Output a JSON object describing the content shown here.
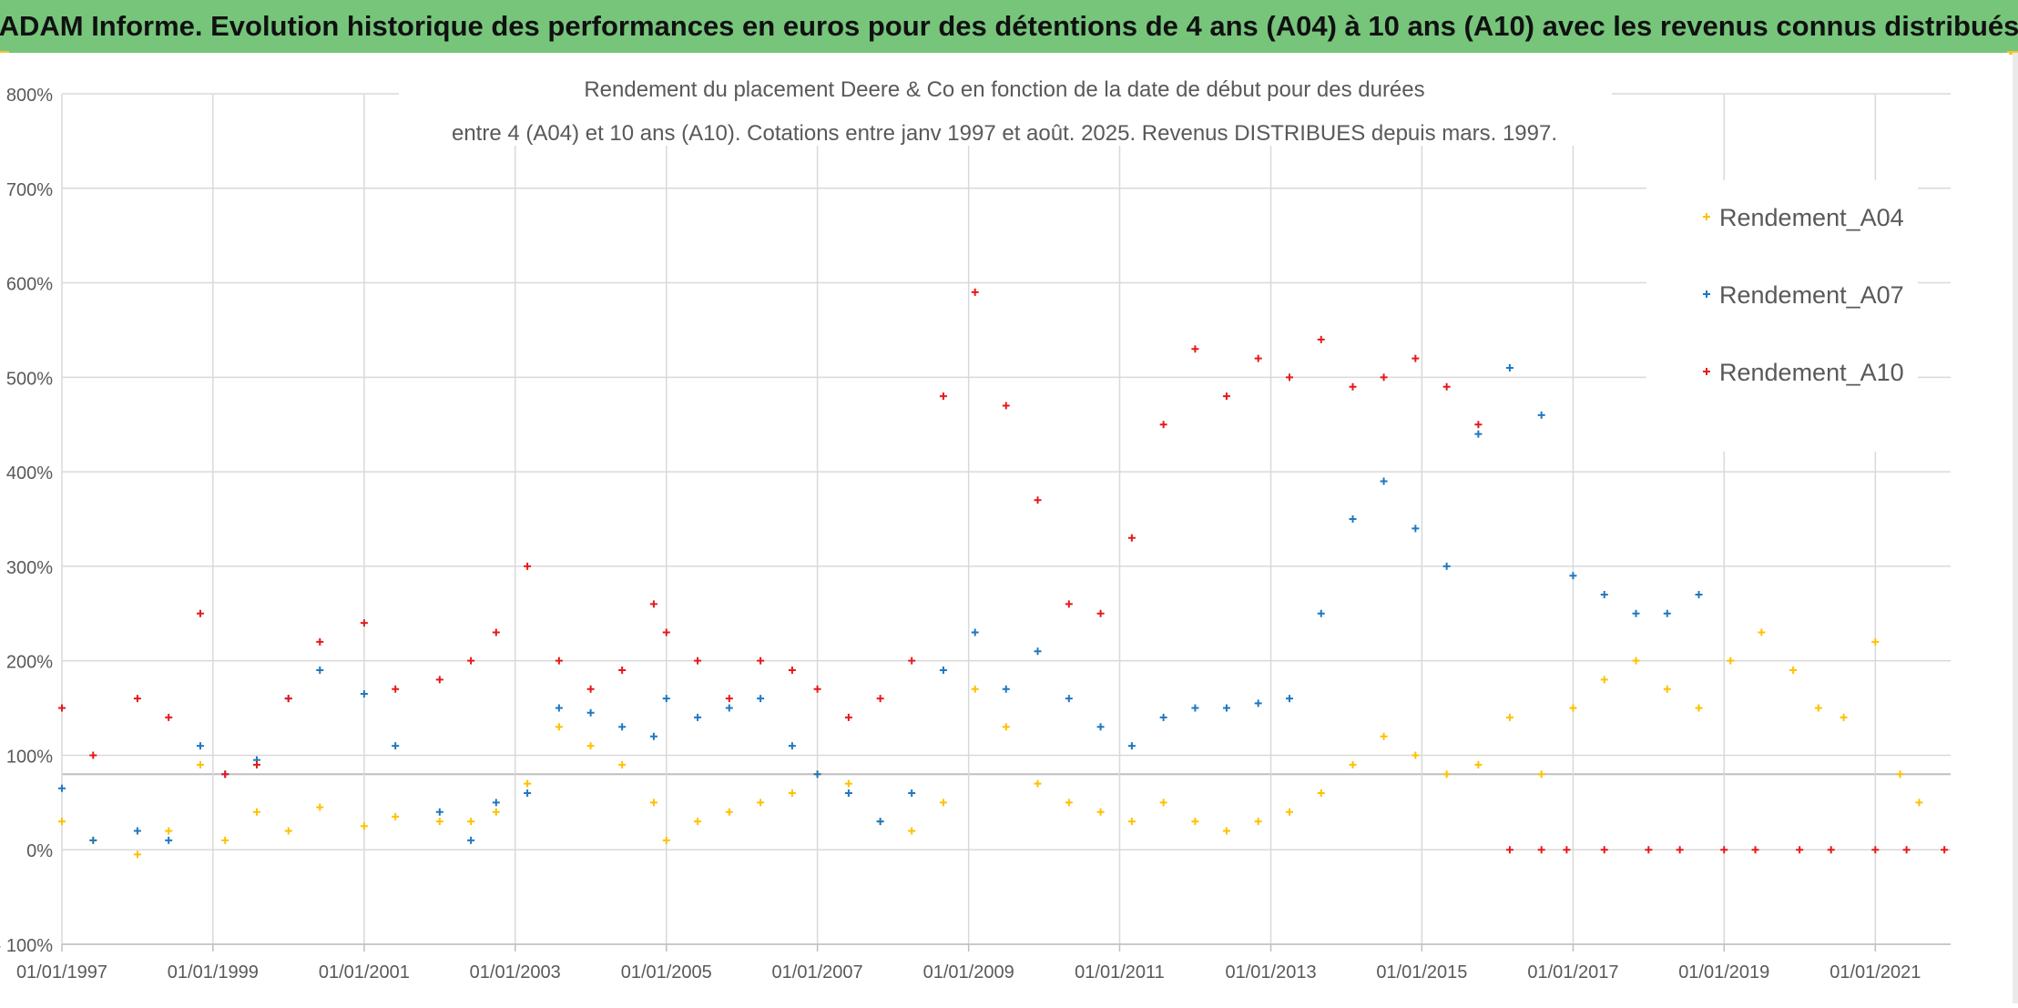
{
  "banner": {
    "title": "ADAM Informe. Evolution historique des performances en euros pour des détentions de 4 ans (A04) à 10 ans (A10) avec les revenus connus distribués"
  },
  "chart_data": {
    "type": "scatter",
    "title_line1": "Rendement du placement Deere & Co en fonction de la date de début pour des durées",
    "title_line2": "entre 4 (A04) et 10 ans (A10). Cotations entre janv 1997 et août. 2025. Revenus DISTRIBUES depuis mars. 1997.",
    "xlabel": "",
    "ylabel": "",
    "x_range": [
      "1997-01-01",
      "2021-12-31"
    ],
    "x_ticks": [
      "01/01/1997",
      "01/01/1999",
      "01/01/2001",
      "01/01/2003",
      "01/01/2005",
      "01/01/2007",
      "01/01/2009",
      "01/01/2011",
      "01/01/2013",
      "01/01/2015",
      "01/01/2017",
      "01/01/2019",
      "01/01/2021"
    ],
    "y_range": [
      -100,
      800
    ],
    "y_ticks": [
      "- 100%",
      "0%",
      "100%",
      "200%",
      "300%",
      "400%",
      "500%",
      "600%",
      "700%",
      "800%"
    ],
    "grid": true,
    "legend_position": "top-right",
    "series": [
      {
        "name": "Rendement_A04",
        "color": "#ffc000",
        "x": [
          "1997-01",
          "1997-06",
          "1998-01",
          "1998-06",
          "1998-11",
          "1999-03",
          "1999-08",
          "2000-01",
          "2000-06",
          "2001-01",
          "2001-06",
          "2002-01",
          "2002-06",
          "2002-10",
          "2003-03",
          "2003-08",
          "2004-01",
          "2004-06",
          "2004-11",
          "2005-01",
          "2005-06",
          "2005-11",
          "2006-04",
          "2006-09",
          "2007-01",
          "2007-06",
          "2007-11",
          "2008-04",
          "2008-09",
          "2009-02",
          "2009-07",
          "2009-12",
          "2010-05",
          "2010-10",
          "2011-03",
          "2011-08",
          "2012-01",
          "2012-06",
          "2012-11",
          "2013-04",
          "2013-09",
          "2014-02",
          "2014-07",
          "2014-12",
          "2015-05",
          "2015-10",
          "2016-03",
          "2016-08",
          "2017-01",
          "2017-06",
          "2017-11",
          "2018-04",
          "2018-09",
          "2019-02",
          "2019-07",
          "2019-12",
          "2020-04",
          "2020-08",
          "2021-01",
          "2021-05",
          "2021-08"
        ],
        "y": [
          30,
          10,
          -5,
          20,
          90,
          10,
          40,
          20,
          45,
          25,
          35,
          30,
          30,
          40,
          70,
          130,
          110,
          90,
          50,
          10,
          30,
          40,
          50,
          60,
          80,
          70,
          30,
          20,
          50,
          170,
          130,
          70,
          50,
          40,
          30,
          50,
          30,
          20,
          30,
          40,
          60,
          90,
          120,
          100,
          80,
          90,
          140,
          80,
          150,
          180,
          200,
          170,
          150,
          200,
          230,
          190,
          150,
          140,
          220,
          80,
          50
        ]
      },
      {
        "name": "Rendement_A07",
        "color": "#1f78c1",
        "x": [
          "1997-01",
          "1997-06",
          "1998-01",
          "1998-06",
          "1998-11",
          "1999-03",
          "1999-08",
          "2000-01",
          "2000-06",
          "2001-01",
          "2001-06",
          "2002-01",
          "2002-06",
          "2002-10",
          "2003-03",
          "2003-08",
          "2004-01",
          "2004-06",
          "2004-11",
          "2005-01",
          "2005-06",
          "2005-11",
          "2006-04",
          "2006-09",
          "2007-01",
          "2007-06",
          "2007-11",
          "2008-04",
          "2008-09",
          "2009-02",
          "2009-07",
          "2009-12",
          "2010-05",
          "2010-10",
          "2011-03",
          "2011-08",
          "2012-01",
          "2012-06",
          "2012-11",
          "2013-04",
          "2013-09",
          "2014-02",
          "2014-07",
          "2014-12",
          "2015-05",
          "2015-10",
          "2016-03",
          "2016-08",
          "2017-01",
          "2017-06",
          "2017-11",
          "2018-04",
          "2018-09"
        ],
        "y": [
          65,
          10,
          20,
          10,
          110,
          80,
          95,
          160,
          190,
          165,
          110,
          40,
          10,
          50,
          60,
          150,
          145,
          130,
          120,
          160,
          140,
          150,
          160,
          110,
          80,
          60,
          30,
          60,
          190,
          230,
          170,
          210,
          160,
          130,
          110,
          140,
          150,
          150,
          155,
          160,
          250,
          350,
          390,
          340,
          300,
          440,
          510,
          460,
          290,
          270,
          250,
          250,
          270
        ]
      },
      {
        "name": "Rendement_A10",
        "color": "#e41a1c",
        "x": [
          "1997-01",
          "1997-06",
          "1998-01",
          "1998-06",
          "1998-11",
          "1999-03",
          "1999-08",
          "2000-01",
          "2000-06",
          "2001-01",
          "2001-06",
          "2002-01",
          "2002-06",
          "2002-10",
          "2003-03",
          "2003-08",
          "2004-01",
          "2004-06",
          "2004-11",
          "2005-01",
          "2005-06",
          "2005-11",
          "2006-04",
          "2006-09",
          "2007-01",
          "2007-06",
          "2007-11",
          "2008-04",
          "2008-09",
          "2009-02",
          "2009-07",
          "2009-12",
          "2010-05",
          "2010-10",
          "2011-03",
          "2011-08",
          "2012-01",
          "2012-06",
          "2012-11",
          "2013-04",
          "2013-09",
          "2014-02",
          "2014-07",
          "2014-12",
          "2015-05",
          "2015-10",
          "2016-03",
          "2016-08",
          "2016-12",
          "2017-06",
          "2018-01",
          "2018-06",
          "2019-01",
          "2019-06",
          "2020-01",
          "2020-06",
          "2021-01",
          "2021-06",
          "2021-12"
        ],
        "y": [
          150,
          100,
          160,
          140,
          250,
          80,
          90,
          160,
          220,
          240,
          170,
          180,
          200,
          230,
          300,
          200,
          170,
          190,
          260,
          230,
          200,
          160,
          200,
          190,
          170,
          140,
          160,
          200,
          480,
          590,
          470,
          370,
          260,
          250,
          330,
          450,
          530,
          480,
          520,
          500,
          540,
          490,
          500,
          520,
          490,
          450,
          0,
          0,
          0,
          0,
          0,
          0,
          0,
          0,
          0,
          0,
          0,
          0,
          0
        ]
      }
    ]
  }
}
